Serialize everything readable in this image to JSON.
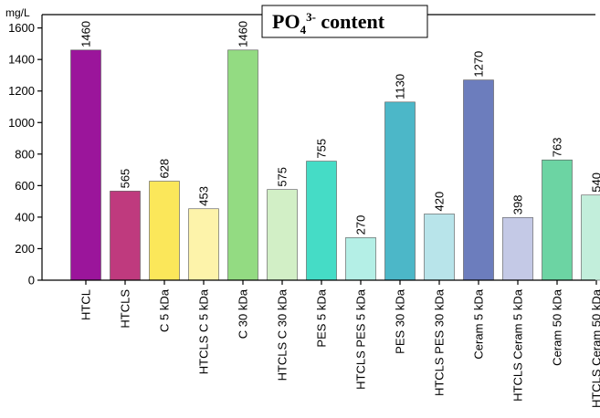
{
  "chart_data": {
    "type": "bar",
    "title": {
      "main": "PO",
      "subscript": "4",
      "superscript": "3-",
      "rest": " content"
    },
    "ylabel": "mg/L",
    "xlabel": "",
    "ylim": [
      0,
      1650
    ],
    "yticks": [
      0,
      200,
      400,
      600,
      800,
      1000,
      1200,
      1400,
      1600
    ],
    "grid": false,
    "categories": [
      "HTCL",
      "HTCLS",
      "C 5 kDa",
      "HTCLS C 5 kDa",
      "C 30 kDa",
      "HTCLS C 30 kDa",
      "PES 5 kDa",
      "HTCLS PES 5 kDa",
      "PES 30 kDa",
      "HTCLS PES 30 kDa",
      "Ceram 5 kDa",
      "HTCLS Ceram 5 kDa",
      "Ceram 50 kDa",
      "HTCLS Ceram 50 kDa"
    ],
    "values": [
      1460,
      565,
      628,
      453,
      1460,
      575,
      755,
      270,
      1130,
      420,
      1270,
      398,
      763,
      540
    ],
    "colors": [
      "#9b159b",
      "#bf3a7e",
      "#fbe75a",
      "#fdf3aa",
      "#93db82",
      "#d2efc6",
      "#45dcc6",
      "#b4efe6",
      "#4cb7c8",
      "#b8e4ea",
      "#6c7dbd",
      "#c4c9e6",
      "#6cd4a3",
      "#c2eedb"
    ]
  }
}
